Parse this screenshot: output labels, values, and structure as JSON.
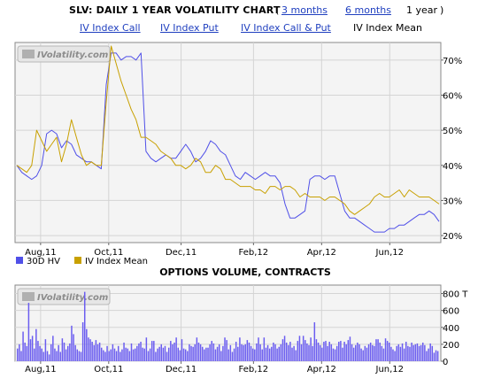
{
  "header": {
    "title": "SLV: DAILY 1 YEAR VOLATILITY CHART",
    "open_paren": "(",
    "close_paren": ")",
    "range_links": [
      "3 months",
      "6 months"
    ],
    "range_current": "1 year"
  },
  "index_links": [
    "IV Index Call",
    "IV Index Put",
    "IV Index Call & Put"
  ],
  "index_current": "IV Index Mean",
  "colors": {
    "hv": "#5050e8",
    "iv": "#c8a000",
    "volume": "#6a5cf0",
    "plot_bg": "#f4f4f4",
    "grid": "#d4d4d4",
    "link": "#1f3fbf"
  },
  "watermark": "IVolatility.com",
  "chart_data": [
    {
      "type": "line",
      "title": "",
      "x_tick_labels": [
        "Aug,11",
        "Oct,11",
        "Dec,11",
        "Feb,12",
        "Apr,12",
        "Jun,12"
      ],
      "y_tick_labels": [
        "20%",
        "30%",
        "40%",
        "50%",
        "60%",
        "70%"
      ],
      "y_ticks": [
        20,
        30,
        40,
        50,
        60,
        70
      ],
      "ylim": [
        18,
        75
      ],
      "y_axis_position": "right",
      "grid": true,
      "legend_position": "bottom-left",
      "series": [
        {
          "name": "30D HV",
          "color_key": "hv",
          "values": [
            40,
            38,
            37,
            36,
            37,
            40,
            49,
            50,
            49,
            45,
            47,
            46,
            43,
            42,
            41,
            41,
            40,
            39,
            63,
            72,
            72,
            70,
            71,
            71,
            70,
            72,
            44,
            42,
            41,
            42,
            43,
            42,
            42,
            44,
            46,
            44,
            41,
            42,
            44,
            47,
            46,
            44,
            43,
            40,
            37,
            36,
            38,
            37,
            36,
            37,
            38,
            37,
            37,
            35,
            29,
            25,
            25,
            26,
            27,
            36,
            37,
            37,
            36,
            37,
            37,
            32,
            27,
            25,
            25,
            24,
            23,
            22,
            21,
            21,
            21,
            22,
            22,
            23,
            23,
            24,
            25,
            26,
            26,
            27,
            26,
            24
          ]
        },
        {
          "name": "IV Index Mean",
          "color_key": "iv",
          "values": [
            40,
            39,
            38,
            40,
            50,
            47,
            44,
            46,
            48,
            41,
            46,
            53,
            48,
            43,
            40,
            41,
            40,
            40,
            58,
            74,
            69,
            64,
            60,
            56,
            53,
            48,
            48,
            47,
            46,
            44,
            43,
            42,
            40,
            40,
            39,
            40,
            42,
            41,
            38,
            38,
            40,
            39,
            36,
            36,
            35,
            34,
            34,
            34,
            33,
            33,
            32,
            34,
            34,
            33,
            34,
            34,
            33,
            31,
            32,
            31,
            31,
            31,
            30,
            31,
            31,
            30,
            29,
            27,
            26,
            27,
            28,
            29,
            31,
            32,
            31,
            31,
            32,
            33,
            31,
            33,
            32,
            31,
            31,
            31,
            30,
            29
          ]
        }
      ]
    },
    {
      "type": "bar",
      "title": "OPTIONS VOLUME, CONTRACTS",
      "x_tick_labels": [
        "Aug,11",
        "Oct,11",
        "Dec,11",
        "Feb,12",
        "Apr,12",
        "Jun,12"
      ],
      "y_tick_labels": [
        "0",
        "200",
        "400",
        "600",
        "800 T"
      ],
      "y_ticks": [
        0,
        200,
        400,
        600,
        800
      ],
      "ylim": [
        0,
        900
      ],
      "y_axis_position": "right",
      "grid": true,
      "series": [
        {
          "name": "Options Volume",
          "color_key": "volume",
          "values": [
            150,
            200,
            120,
            350,
            220,
            180,
            690,
            260,
            300,
            150,
            380,
            240,
            180,
            150,
            110,
            260,
            120,
            80,
            200,
            300,
            150,
            120,
            190,
            110,
            270,
            220,
            140,
            180,
            210,
            420,
            320,
            190,
            140,
            120,
            110,
            460,
            820,
            380,
            280,
            260,
            230,
            190,
            250,
            200,
            220,
            160,
            130,
            110,
            180,
            120,
            140,
            200,
            150,
            120,
            180,
            110,
            140,
            220,
            160,
            150,
            120,
            210,
            140,
            150,
            180,
            210,
            230,
            160,
            150,
            280,
            120,
            150,
            240,
            240,
            110,
            150,
            170,
            200,
            160,
            180,
            110,
            160,
            240,
            200,
            220,
            280,
            160,
            130,
            260,
            150,
            140,
            120,
            200,
            180,
            170,
            200,
            280,
            220,
            200,
            170,
            140,
            160,
            160,
            200,
            240,
            210,
            140,
            170,
            200,
            120,
            180,
            280,
            250,
            140,
            190,
            110,
            150,
            230,
            170,
            280,
            200,
            190,
            200,
            250,
            220,
            180,
            150,
            140,
            210,
            280,
            200,
            140,
            280,
            160,
            190,
            150,
            170,
            220,
            200,
            150,
            170,
            200,
            260,
            300,
            220,
            190,
            230,
            160,
            180,
            130,
            240,
            300,
            200,
            300,
            250,
            210,
            190,
            280,
            180,
            460,
            260,
            220,
            190,
            160,
            230,
            240,
            180,
            230,
            200,
            150,
            140,
            180,
            230,
            240,
            160,
            230,
            200,
            250,
            290,
            200,
            160,
            190,
            220,
            200,
            150,
            130,
            180,
            160,
            200,
            220,
            190,
            180,
            260,
            260,
            220,
            180,
            150,
            270,
            240,
            220,
            170,
            140,
            120,
            180,
            200,
            170,
            210,
            150,
            230,
            180,
            170,
            220,
            190,
            200,
            210,
            180,
            190,
            220,
            190,
            120,
            150,
            210,
            180,
            100,
            130,
            120
          ]
        }
      ]
    }
  ],
  "legend": {
    "hv_label": "30D HV",
    "iv_label": "IV Index Mean"
  }
}
